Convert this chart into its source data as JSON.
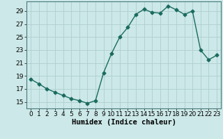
{
  "xlabel": "Humidex (Indice chaleur)",
  "x": [
    0,
    1,
    2,
    3,
    4,
    5,
    6,
    7,
    8,
    9,
    10,
    11,
    12,
    13,
    14,
    15,
    16,
    17,
    18,
    19,
    20,
    21,
    22,
    23
  ],
  "y": [
    18.5,
    17.8,
    17.0,
    16.5,
    16.0,
    15.5,
    15.2,
    14.8,
    15.2,
    19.5,
    22.5,
    25.0,
    26.5,
    28.5,
    29.3,
    28.8,
    28.7,
    29.8,
    29.2,
    28.5,
    29.0,
    23.0,
    21.5,
    22.2
  ],
  "line_color": "#1a6b5e",
  "marker": "D",
  "markersize": 2.5,
  "linewidth": 1.0,
  "bg_color": "#cce8e8",
  "grid_color": "#b0cece",
  "ylim": [
    14.0,
    30.5
  ],
  "xlim": [
    -0.5,
    23.5
  ],
  "yticks": [
    15,
    17,
    19,
    21,
    23,
    25,
    27,
    29
  ],
  "xticks": [
    0,
    1,
    2,
    3,
    4,
    5,
    6,
    7,
    8,
    9,
    10,
    11,
    12,
    13,
    14,
    15,
    16,
    17,
    18,
    19,
    20,
    21,
    22,
    23
  ],
  "tick_fontsize": 6.5,
  "xlabel_fontsize": 7.5
}
